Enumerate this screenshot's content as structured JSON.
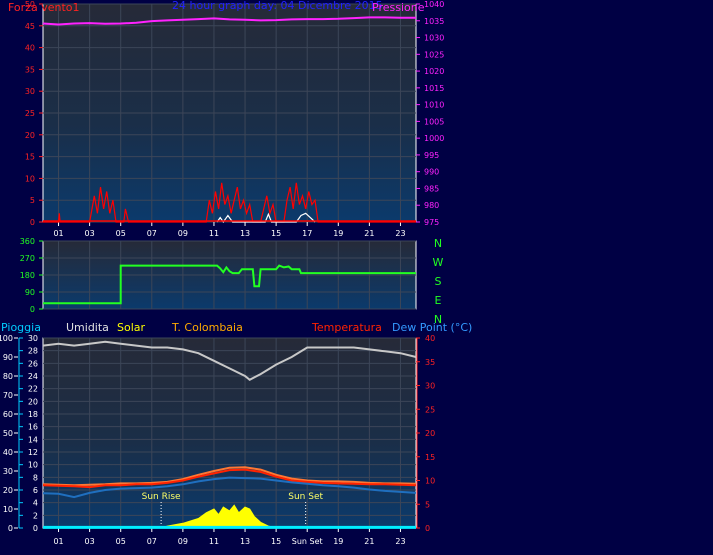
{
  "header": {
    "left_label": "Forza vento1",
    "title": "24 hour graph day: 04 Dicembre 2015",
    "right_label": "Pressione"
  },
  "colors": {
    "background": "#000044",
    "plot_top": "#262a38",
    "plot_bottom": "#0b3a6c",
    "wind": "#ff0000",
    "gust": "#ffffff",
    "pressure": "#ff22ff",
    "direction": "#22ff22",
    "humidity": "#c8c8c8",
    "temperature": "#ff4422",
    "dewpoint": "#1f6fbf",
    "solar": "#ffff00",
    "rain": "#00eeff",
    "title": "#2222ff"
  },
  "chart_data": [
    {
      "id": "wind_pressure",
      "type": "line",
      "x_ticks": [
        "01",
        "03",
        "05",
        "07",
        "09",
        "11",
        "13",
        "15",
        "17",
        "19",
        "21",
        "23"
      ],
      "y_left_ticks": [
        0,
        5,
        10,
        15,
        20,
        25,
        30,
        35,
        40,
        45,
        50
      ],
      "y_right_ticks": [
        975,
        980,
        985,
        990,
        995,
        1000,
        1005,
        1010,
        1015,
        1020,
        1025,
        1030,
        1035,
        1040
      ],
      "ylim_left": [
        0,
        50
      ],
      "ylim_right": [
        975,
        1040
      ],
      "xlim": [
        0,
        24
      ],
      "series": [
        {
          "name": "Pressione",
          "axis": "right",
          "color": "#ff22ff",
          "points": [
            [
              0,
              1034.2
            ],
            [
              1,
              1033.9
            ],
            [
              2,
              1034.2
            ],
            [
              3,
              1034.3
            ],
            [
              4,
              1034.1
            ],
            [
              5,
              1034.2
            ],
            [
              6,
              1034.4
            ],
            [
              7,
              1034.9
            ],
            [
              8,
              1035.1
            ],
            [
              9,
              1035.3
            ],
            [
              10,
              1035.5
            ],
            [
              11,
              1035.7
            ],
            [
              12,
              1035.4
            ],
            [
              13,
              1035.3
            ],
            [
              14,
              1035.1
            ],
            [
              15,
              1035.2
            ],
            [
              16,
              1035.4
            ],
            [
              17,
              1035.5
            ],
            [
              18,
              1035.5
            ],
            [
              19,
              1035.6
            ],
            [
              20,
              1035.8
            ],
            [
              21,
              1036.0
            ],
            [
              22,
              1036.0
            ],
            [
              23,
              1035.9
            ],
            [
              24,
              1035.9
            ]
          ]
        },
        {
          "name": "Forza vento1",
          "axis": "left",
          "color": "#ff0000",
          "points": [
            [
              0,
              0
            ],
            [
              1,
              0
            ],
            [
              1.05,
              2
            ],
            [
              1.1,
              0
            ],
            [
              3,
              0
            ],
            [
              3.15,
              3
            ],
            [
              3.3,
              6
            ],
            [
              3.5,
              2
            ],
            [
              3.7,
              8
            ],
            [
              3.9,
              3
            ],
            [
              4.1,
              7
            ],
            [
              4.3,
              2
            ],
            [
              4.5,
              5
            ],
            [
              4.7,
              0
            ],
            [
              5.2,
              0
            ],
            [
              5.3,
              3
            ],
            [
              5.5,
              0
            ],
            [
              10.5,
              0
            ],
            [
              10.7,
              5
            ],
            [
              10.9,
              2
            ],
            [
              11.1,
              7
            ],
            [
              11.3,
              3
            ],
            [
              11.5,
              9
            ],
            [
              11.7,
              4
            ],
            [
              11.9,
              6
            ],
            [
              12.1,
              2
            ],
            [
              12.3,
              5
            ],
            [
              12.5,
              8
            ],
            [
              12.7,
              3
            ],
            [
              12.9,
              5
            ],
            [
              13.1,
              2
            ],
            [
              13.3,
              4
            ],
            [
              13.5,
              0
            ],
            [
              14,
              0
            ],
            [
              14.2,
              3
            ],
            [
              14.4,
              6
            ],
            [
              14.6,
              2
            ],
            [
              14.8,
              4
            ],
            [
              15,
              0
            ],
            [
              15.5,
              0
            ],
            [
              15.7,
              5
            ],
            [
              15.9,
              8
            ],
            [
              16.1,
              3
            ],
            [
              16.3,
              9
            ],
            [
              16.5,
              4
            ],
            [
              16.7,
              6
            ],
            [
              16.9,
              3
            ],
            [
              17.1,
              7
            ],
            [
              17.3,
              4
            ],
            [
              17.5,
              5
            ],
            [
              17.7,
              0
            ],
            [
              24,
              0
            ]
          ]
        },
        {
          "name": "Raffica",
          "axis": "left",
          "color": "#ffffff",
          "points": [
            [
              11.2,
              0
            ],
            [
              11.4,
              1
            ],
            [
              11.6,
              0
            ],
            [
              11.9,
              1.5
            ],
            [
              12.2,
              0
            ],
            [
              14.3,
              0
            ],
            [
              14.5,
              1.8
            ],
            [
              14.7,
              0
            ],
            [
              16.3,
              0
            ],
            [
              16.6,
              1.5
            ],
            [
              16.9,
              2
            ],
            [
              17.2,
              1
            ],
            [
              17.5,
              0
            ]
          ]
        }
      ]
    },
    {
      "id": "direction",
      "type": "line",
      "x_ticks": [
        "01",
        "03",
        "05",
        "07",
        "09",
        "11",
        "13",
        "15",
        "17",
        "19",
        "21",
        "23"
      ],
      "y_left_ticks": [
        0,
        90,
        180,
        270,
        360
      ],
      "y_right_labels": [
        "N",
        "W",
        "S",
        "E",
        "N"
      ],
      "ylim": [
        0,
        360
      ],
      "series": [
        {
          "name": "Direzione",
          "color": "#22ff22",
          "points": [
            [
              0,
              30
            ],
            [
              5,
              30
            ],
            [
              5,
              230
            ],
            [
              11.2,
              230
            ],
            [
              11.4,
              215
            ],
            [
              11.6,
              195
            ],
            [
              11.8,
              220
            ],
            [
              12,
              200
            ],
            [
              12.2,
              190
            ],
            [
              12.6,
              190
            ],
            [
              12.8,
              210
            ],
            [
              13.5,
              210
            ],
            [
              13.6,
              120
            ],
            [
              13.9,
              120
            ],
            [
              14,
              210
            ],
            [
              15,
              210
            ],
            [
              15.2,
              230
            ],
            [
              15.5,
              220
            ],
            [
              15.8,
              225
            ],
            [
              16,
              210
            ],
            [
              16.5,
              210
            ],
            [
              16.6,
              190
            ],
            [
              24,
              190
            ]
          ]
        }
      ]
    },
    {
      "id": "temperature_humidity",
      "type": "line",
      "x_ticks": [
        "01",
        "03",
        "05",
        "07",
        "09",
        "11",
        "13",
        "15",
        "Sun Set",
        "19",
        "21",
        "23"
      ],
      "y_left_outer_ticks": [
        0,
        10,
        20,
        30,
        40,
        50,
        60,
        70,
        80,
        90,
        100
      ],
      "y_left_inner_ticks": [
        0,
        2,
        4,
        6,
        8,
        10,
        12,
        14,
        16,
        18,
        20,
        22,
        24,
        26,
        28,
        30
      ],
      "y_right_ticks": [
        0,
        5,
        10,
        15,
        20,
        25,
        30,
        35,
        40
      ],
      "legend": [
        {
          "label": "Pioggia",
          "color": "#00ccff"
        },
        {
          "label": "Umidita",
          "color": "#e0e0e0"
        },
        {
          "label": "Solar",
          "color": "#ffff00"
        },
        {
          "label": "T. Colombaia",
          "color": "#ffaa00"
        },
        {
          "label": "Temperatura",
          "color": "#ff2200"
        },
        {
          "label": "Dew Point (°C)",
          "color": "#3399ff"
        }
      ],
      "annotations": [
        {
          "label": "Sun Rise",
          "x": 7.6
        },
        {
          "label": "Sun Set",
          "x": 16.9
        }
      ],
      "series": [
        {
          "name": "Umidita",
          "axis": "outer",
          "color": "#c8c8c8",
          "points": [
            [
              0,
              96
            ],
            [
              1,
              97
            ],
            [
              2,
              96
            ],
            [
              3,
              97
            ],
            [
              4,
              98
            ],
            [
              5,
              97
            ],
            [
              6,
              96
            ],
            [
              7,
              95
            ],
            [
              8,
              95
            ],
            [
              9,
              94
            ],
            [
              10,
              92
            ],
            [
              11,
              88
            ],
            [
              12,
              84
            ],
            [
              13,
              80
            ],
            [
              13.3,
              78
            ],
            [
              14,
              81
            ],
            [
              15,
              86
            ],
            [
              16,
              90
            ],
            [
              17,
              95
            ],
            [
              18,
              95
            ],
            [
              19,
              95
            ],
            [
              20,
              95
            ],
            [
              21,
              94
            ],
            [
              22,
              93
            ],
            [
              23,
              92
            ],
            [
              24,
              90
            ]
          ]
        },
        {
          "name": "T. Colombaia",
          "axis": "right",
          "color": "#ff7733",
          "points": [
            [
              0,
              9.2
            ],
            [
              1,
              9.1
            ],
            [
              2,
              9.0
            ],
            [
              3,
              9.1
            ],
            [
              4,
              9.2
            ],
            [
              5,
              9.4
            ],
            [
              6,
              9.4
            ],
            [
              7,
              9.5
            ],
            [
              8,
              9.7
            ],
            [
              9,
              10.3
            ],
            [
              10,
              11.2
            ],
            [
              11,
              12.0
            ],
            [
              12,
              12.7
            ],
            [
              13,
              12.8
            ],
            [
              14,
              12.3
            ],
            [
              15,
              11.2
            ],
            [
              16,
              10.4
            ],
            [
              17,
              10.0
            ],
            [
              18,
              9.8
            ],
            [
              19,
              9.8
            ],
            [
              20,
              9.7
            ],
            [
              21,
              9.5
            ],
            [
              22,
              9.4
            ],
            [
              23,
              9.4
            ],
            [
              24,
              9.3
            ]
          ]
        },
        {
          "name": "Temperatura",
          "axis": "right",
          "color": "#ff2200",
          "points": [
            [
              0,
              9.0
            ],
            [
              1,
              8.9
            ],
            [
              2,
              8.8
            ],
            [
              3,
              8.6
            ],
            [
              4,
              9.0
            ],
            [
              5,
              9.0
            ],
            [
              6,
              9.2
            ],
            [
              7,
              9.2
            ],
            [
              8,
              9.5
            ],
            [
              9,
              10.0
            ],
            [
              10,
              10.8
            ],
            [
              11,
              11.5
            ],
            [
              12,
              12.2
            ],
            [
              13,
              12.3
            ],
            [
              14,
              11.8
            ],
            [
              15,
              10.8
            ],
            [
              16,
              10.0
            ],
            [
              17,
              9.7
            ],
            [
              18,
              9.5
            ],
            [
              19,
              9.4
            ],
            [
              20,
              9.3
            ],
            [
              21,
              9.2
            ],
            [
              22,
              9.2
            ],
            [
              23,
              9.1
            ],
            [
              24,
              9.0
            ]
          ]
        },
        {
          "name": "Dew Point",
          "axis": "right",
          "color": "#1f6fbf",
          "points": [
            [
              0,
              7.3
            ],
            [
              1,
              7.2
            ],
            [
              2,
              6.5
            ],
            [
              3,
              7.4
            ],
            [
              4,
              8.0
            ],
            [
              5,
              8.3
            ],
            [
              6,
              8.4
            ],
            [
              7,
              8.5
            ],
            [
              8,
              8.8
            ],
            [
              9,
              9.2
            ],
            [
              10,
              9.8
            ],
            [
              11,
              10.3
            ],
            [
              12,
              10.6
            ],
            [
              13,
              10.5
            ],
            [
              14,
              10.4
            ],
            [
              15,
              10.0
            ],
            [
              16,
              9.6
            ],
            [
              17,
              9.3
            ],
            [
              18,
              9.0
            ],
            [
              19,
              8.8
            ],
            [
              20,
              8.5
            ],
            [
              21,
              8.1
            ],
            [
              22,
              7.8
            ],
            [
              23,
              7.6
            ],
            [
              24,
              7.4
            ]
          ]
        },
        {
          "name": "Solar",
          "axis": "outer",
          "color": "#ffff00",
          "points": [
            [
              7.6,
              0
            ],
            [
              8,
              1
            ],
            [
              9,
              2.5
            ],
            [
              10,
              5
            ],
            [
              10.5,
              8
            ],
            [
              11,
              10
            ],
            [
              11.3,
              7
            ],
            [
              11.6,
              11
            ],
            [
              12,
              9
            ],
            [
              12.3,
              12
            ],
            [
              12.6,
              8
            ],
            [
              13,
              11
            ],
            [
              13.3,
              10
            ],
            [
              13.6,
              6
            ],
            [
              14,
              3
            ],
            [
              14.5,
              1
            ],
            [
              15,
              0
            ]
          ]
        },
        {
          "name": "Pioggia",
          "axis": "inner",
          "color": "#00eeff",
          "points": [
            [
              0,
              0.1
            ],
            [
              24,
              0.1
            ]
          ]
        }
      ]
    }
  ]
}
